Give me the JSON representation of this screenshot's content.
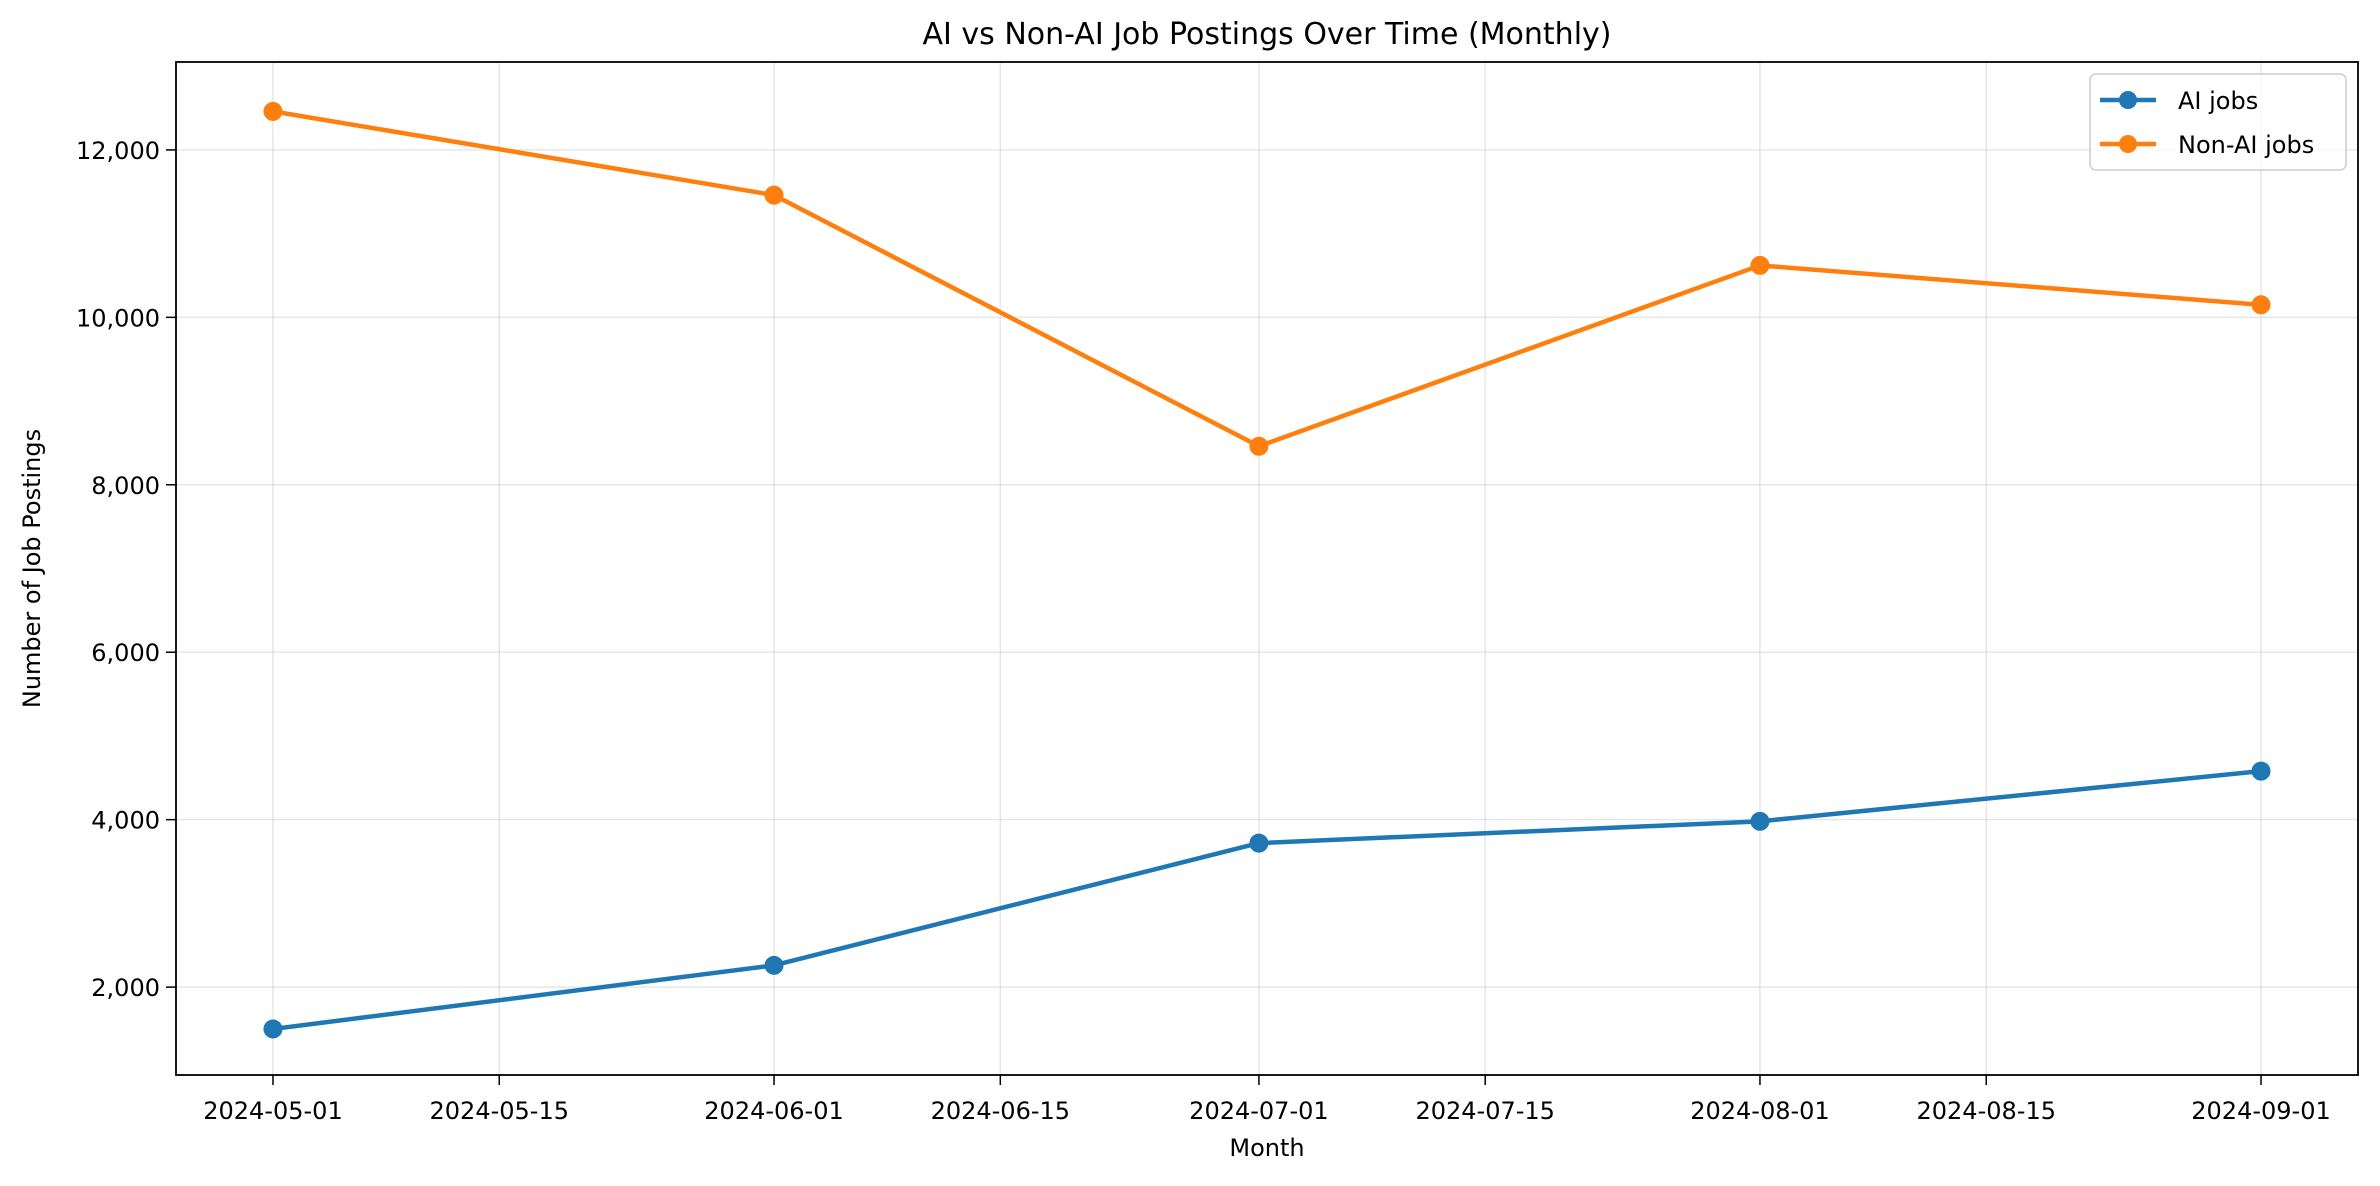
{
  "chart_data": {
    "type": "line",
    "title": "AI vs Non-AI Job Postings Over Time (Monthly)",
    "xlabel": "Month",
    "ylabel": "Number of Job Postings",
    "x": [
      "2024-05-01",
      "2024-06-01",
      "2024-07-01",
      "2024-08-01",
      "2024-09-01"
    ],
    "x_ticks": [
      "2024-05-01",
      "2024-05-15",
      "2024-06-01",
      "2024-06-15",
      "2024-07-01",
      "2024-07-15",
      "2024-08-01",
      "2024-08-15",
      "2024-09-01"
    ],
    "xlim": [
      "2024-04-25",
      "2024-09-07"
    ],
    "y_ticks": [
      2000,
      4000,
      6000,
      8000,
      10000,
      12000
    ],
    "y_tick_labels": [
      "2,000",
      "4,000",
      "6,000",
      "8,000",
      "10,000",
      "12,000"
    ],
    "ylim": [
      950,
      13050
    ],
    "grid": true,
    "legend_position": "top-right",
    "series": [
      {
        "name": "AI jobs",
        "color": "#1f77b4",
        "marker": "circle",
        "values": [
          1500,
          2260,
          3720,
          3980,
          4580
        ]
      },
      {
        "name": "Non-AI jobs",
        "color": "#ff7f0e",
        "marker": "circle",
        "values": [
          12460,
          11460,
          8460,
          10620,
          10150
        ]
      }
    ]
  }
}
